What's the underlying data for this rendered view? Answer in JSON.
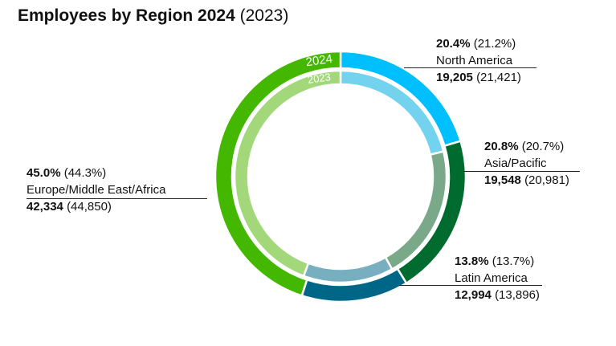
{
  "chart_data": {
    "type": "pie",
    "title": "Employees by Region 2024",
    "title_compare": "(2023)",
    "ring_labels": {
      "outer": "2024",
      "inner": "2023"
    },
    "categories": [
      "North America",
      "Asia/Pacific",
      "Latin America",
      "Europe/Middle East/Africa"
    ],
    "series": [
      {
        "name": "2024",
        "values": [
          19205,
          19548,
          12994,
          42334
        ],
        "percent": [
          "20.4%",
          "20.8%",
          "13.8%",
          "45.0%"
        ],
        "values_text": [
          "19,205",
          "19,548",
          "12,994",
          "42,334"
        ],
        "colors": [
          "#00BFFF",
          "#006B2F",
          "#006688",
          "#44B700"
        ]
      },
      {
        "name": "2023",
        "values": [
          21421,
          20981,
          13896,
          44850
        ],
        "percent": [
          "(21.2%)",
          "(20.7%)",
          "(13.7%)",
          "(44.3%)"
        ],
        "values_text": [
          "(21,421)",
          "(20,981)",
          "(13,896)",
          "(44,850)"
        ],
        "colors": [
          "#73D2EE",
          "#7AA98A",
          "#78AFC0",
          "#A2D87A"
        ]
      }
    ]
  }
}
